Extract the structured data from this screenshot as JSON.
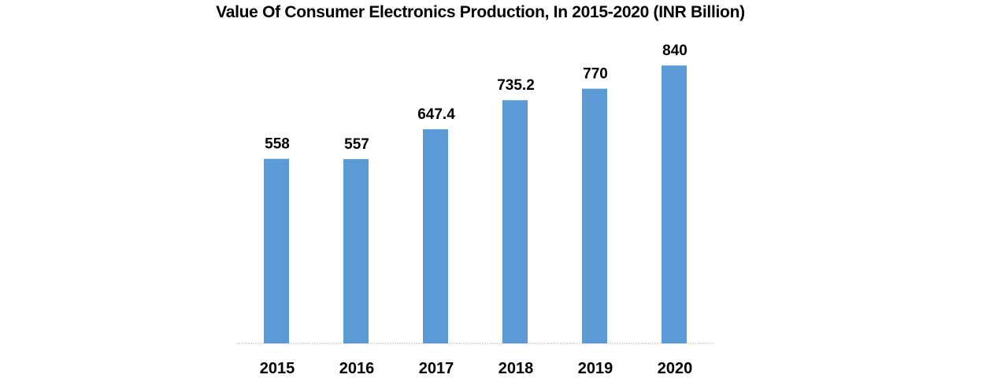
{
  "chart_data": {
    "type": "bar",
    "title": "Value Of Consumer Electronics Production, In 2015-2020 (INR Billion)",
    "categories": [
      "2015",
      "2016",
      "2017",
      "2018",
      "2019",
      "2020"
    ],
    "values": [
      558,
      557,
      647.4,
      735.2,
      770,
      840
    ],
    "value_labels": [
      "558",
      "557",
      "647.4",
      "735.2",
      "770",
      "840"
    ],
    "xlabel": "",
    "ylabel": "",
    "ylim": [
      0,
      1000
    ],
    "grid": false,
    "legend": "none",
    "bar_color": "#5B9BD5",
    "axis_color": "#BFBFBF"
  }
}
